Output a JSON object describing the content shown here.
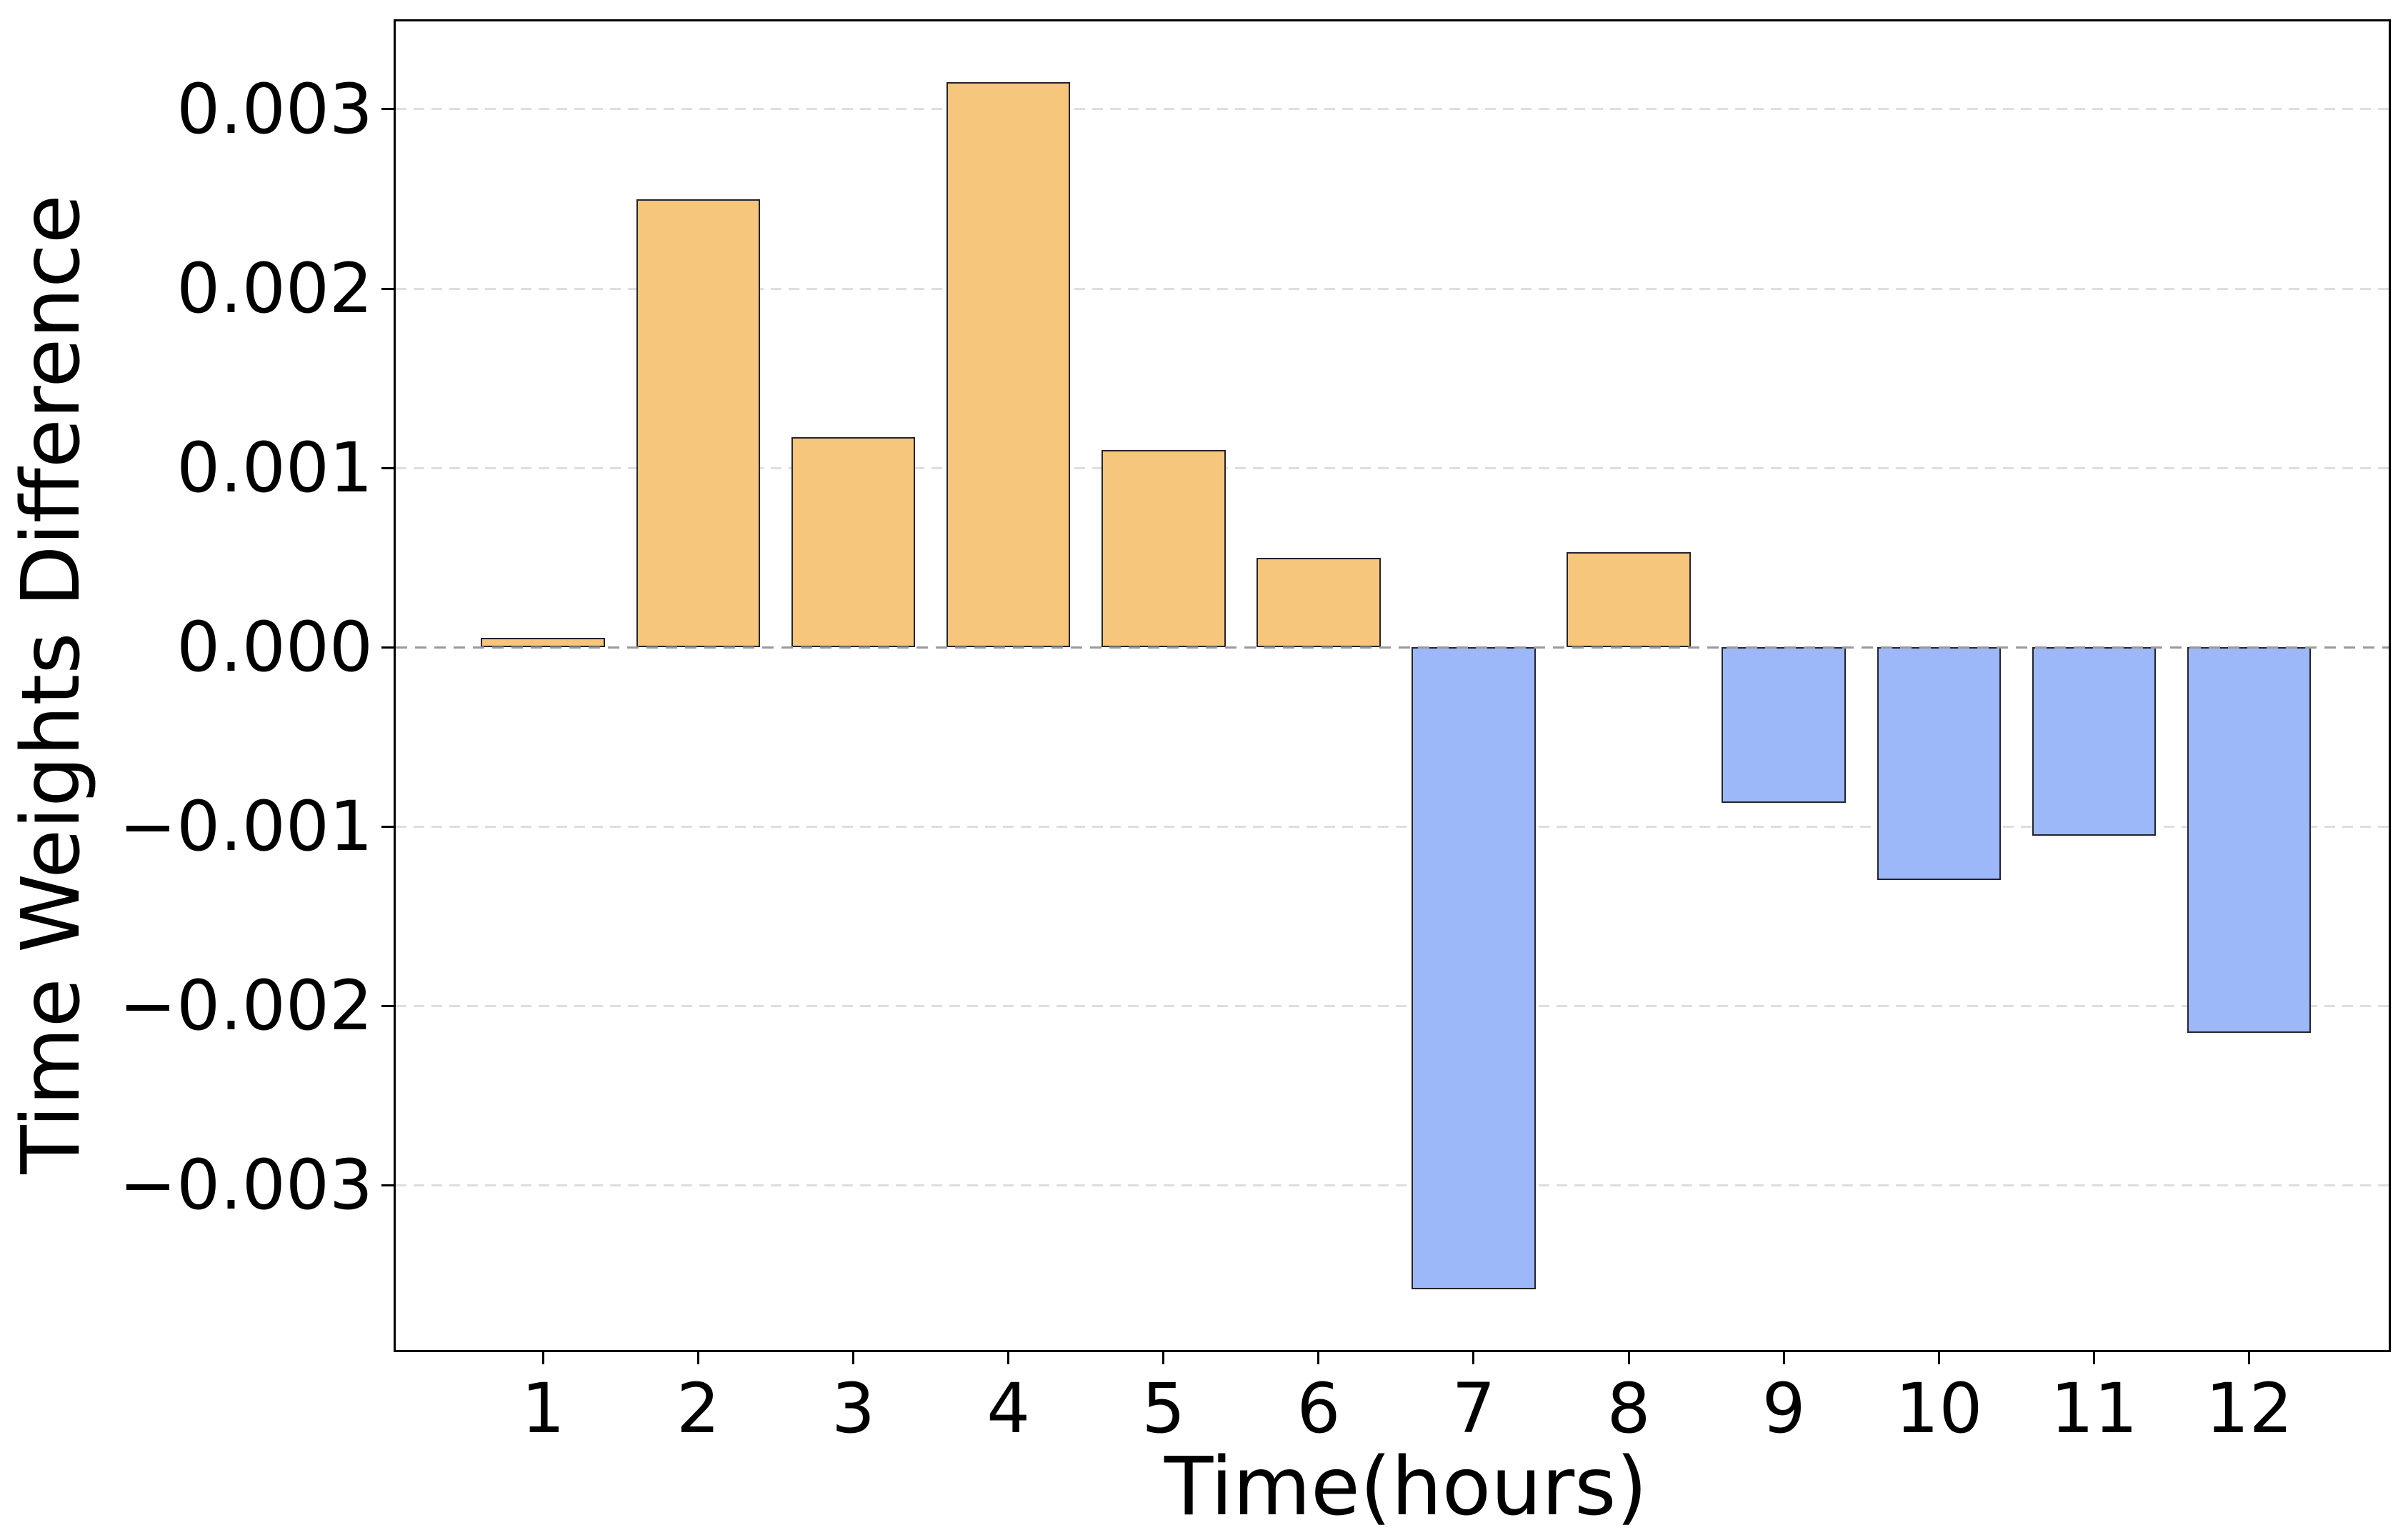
{
  "figure": {
    "background_color": "#ffffff",
    "spine_color": "#000000"
  },
  "chart_data": {
    "type": "bar",
    "title": "",
    "xlabel": "Time(hours)",
    "ylabel": "Time Weights Difference",
    "categories": [
      "1",
      "2",
      "3",
      "4",
      "5",
      "6",
      "7",
      "8",
      "9",
      "10",
      "11",
      "12"
    ],
    "values": [
      5e-05,
      0.0025,
      0.00117,
      0.00315,
      0.0011,
      0.0005,
      -0.00358,
      0.00053,
      -0.00087,
      -0.0013,
      -0.00105,
      -0.00215
    ],
    "series": [
      {
        "name": "Time Weights Difference",
        "values": [
          5e-05,
          0.0025,
          0.00117,
          0.00315,
          0.0011,
          0.0005,
          -0.00358,
          0.00053,
          -0.00087,
          -0.0013,
          -0.00105,
          -0.00215
        ]
      }
    ],
    "yticks": [
      {
        "value": 0.003,
        "label": "0.003"
      },
      {
        "value": 0.002,
        "label": "0.002"
      },
      {
        "value": 0.001,
        "label": "0.001"
      },
      {
        "value": 0.0,
        "label": "0.000"
      },
      {
        "value": -0.001,
        "label": "−0.001"
      },
      {
        "value": -0.002,
        "label": "−0.002"
      },
      {
        "value": -0.003,
        "label": "−0.003"
      }
    ],
    "ylim": [
      -0.00392,
      0.00349
    ],
    "xlim": [
      0.05,
      12.9
    ],
    "bar_width_units": 0.8,
    "grid": {
      "axis": "y",
      "style": "dashed",
      "color": "#dedede",
      "on": true
    },
    "zero_line": {
      "value": 0.0,
      "style": "dashed",
      "color": "#9a9a9a"
    },
    "colors": {
      "positive_bar": "#f7c67d",
      "negative_bar": "#9db8f8",
      "bar_edge": "#24242b"
    },
    "legend": null
  }
}
